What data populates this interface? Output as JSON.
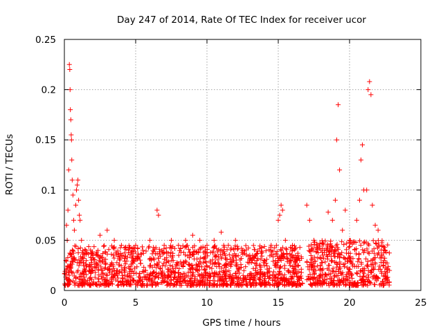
{
  "chart_data": {
    "type": "scatter",
    "title": "Day 247 of 2014, Rate Of TEC Index for receiver ucor",
    "xlabel": "GPS time / hours",
    "ylabel": "ROTI / TECUs",
    "xlim": [
      0,
      25
    ],
    "ylim": [
      0,
      0.25
    ],
    "x_ticks": [
      0,
      5,
      10,
      15,
      20,
      25
    ],
    "x_tick_labels": [
      "0",
      "5",
      "10",
      "15",
      "20",
      "25"
    ],
    "y_ticks": [
      0,
      0.05,
      0.1,
      0.15,
      0.2,
      0.25
    ],
    "y_tick_labels": [
      "0",
      "0.05",
      "0.1",
      "0.15",
      "0.2",
      "0.25"
    ],
    "grid": true,
    "marker": "plus",
    "series": [
      {
        "name": "ROTI",
        "color": "#ff0000",
        "points": [
          [
            0.1,
            0.03
          ],
          [
            0.15,
            0.065
          ],
          [
            0.2,
            0.05
          ],
          [
            0.25,
            0.08
          ],
          [
            0.3,
            0.12
          ],
          [
            0.35,
            0.225
          ],
          [
            0.38,
            0.22
          ],
          [
            0.4,
            0.2
          ],
          [
            0.42,
            0.18
          ],
          [
            0.45,
            0.17
          ],
          [
            0.48,
            0.155
          ],
          [
            0.5,
            0.15
          ],
          [
            0.52,
            0.13
          ],
          [
            0.55,
            0.11
          ],
          [
            0.6,
            0.095
          ],
          [
            0.65,
            0.07
          ],
          [
            0.7,
            0.06
          ],
          [
            0.8,
            0.085
          ],
          [
            0.85,
            0.1
          ],
          [
            0.9,
            0.105
          ],
          [
            0.95,
            0.11
          ],
          [
            1.0,
            0.09
          ],
          [
            1.05,
            0.075
          ],
          [
            1.1,
            0.07
          ],
          [
            1.2,
            0.05
          ],
          [
            1.5,
            0.04
          ],
          [
            2.0,
            0.035
          ],
          [
            2.5,
            0.055
          ],
          [
            3.0,
            0.06
          ],
          [
            3.5,
            0.05
          ],
          [
            4.0,
            0.045
          ],
          [
            4.5,
            0.04
          ],
          [
            5.0,
            0.045
          ],
          [
            5.5,
            0.04
          ],
          [
            6.0,
            0.05
          ],
          [
            6.5,
            0.08
          ],
          [
            6.6,
            0.075
          ],
          [
            7.0,
            0.045
          ],
          [
            7.5,
            0.05
          ],
          [
            8.0,
            0.045
          ],
          [
            8.5,
            0.05
          ],
          [
            9.0,
            0.055
          ],
          [
            9.5,
            0.05
          ],
          [
            10.0,
            0.045
          ],
          [
            10.5,
            0.05
          ],
          [
            11.0,
            0.058
          ],
          [
            11.5,
            0.045
          ],
          [
            12.0,
            0.05
          ],
          [
            12.5,
            0.04
          ],
          [
            13.0,
            0.035
          ],
          [
            13.5,
            0.03
          ],
          [
            14.0,
            0.03
          ],
          [
            14.5,
            0.045
          ],
          [
            15.0,
            0.07
          ],
          [
            15.1,
            0.075
          ],
          [
            15.2,
            0.085
          ],
          [
            15.3,
            0.08
          ],
          [
            15.5,
            0.05
          ],
          [
            16.0,
            0.045
          ],
          [
            16.5,
            0.03
          ],
          [
            17.0,
            0.085
          ],
          [
            17.2,
            0.07
          ],
          [
            17.5,
            0.05
          ],
          [
            18.0,
            0.04
          ],
          [
            18.5,
            0.078
          ],
          [
            18.8,
            0.07
          ],
          [
            19.0,
            0.09
          ],
          [
            19.1,
            0.15
          ],
          [
            19.2,
            0.185
          ],
          [
            19.3,
            0.12
          ],
          [
            19.5,
            0.06
          ],
          [
            19.7,
            0.08
          ],
          [
            20.0,
            0.05
          ],
          [
            20.5,
            0.07
          ],
          [
            20.7,
            0.09
          ],
          [
            20.8,
            0.13
          ],
          [
            20.9,
            0.145
          ],
          [
            21.0,
            0.1
          ],
          [
            21.2,
            0.1
          ],
          [
            21.3,
            0.2
          ],
          [
            21.4,
            0.208
          ],
          [
            21.5,
            0.195
          ],
          [
            21.6,
            0.085
          ],
          [
            21.8,
            0.065
          ],
          [
            22.0,
            0.06
          ],
          [
            22.5,
            0.04
          ],
          [
            22.8,
            0.02
          ]
        ],
        "dense_band_segments": [
          [
            0.0,
            16.7,
            0.005,
            0.045
          ],
          [
            17.0,
            22.8,
            0.005,
            0.05
          ]
        ]
      }
    ]
  }
}
